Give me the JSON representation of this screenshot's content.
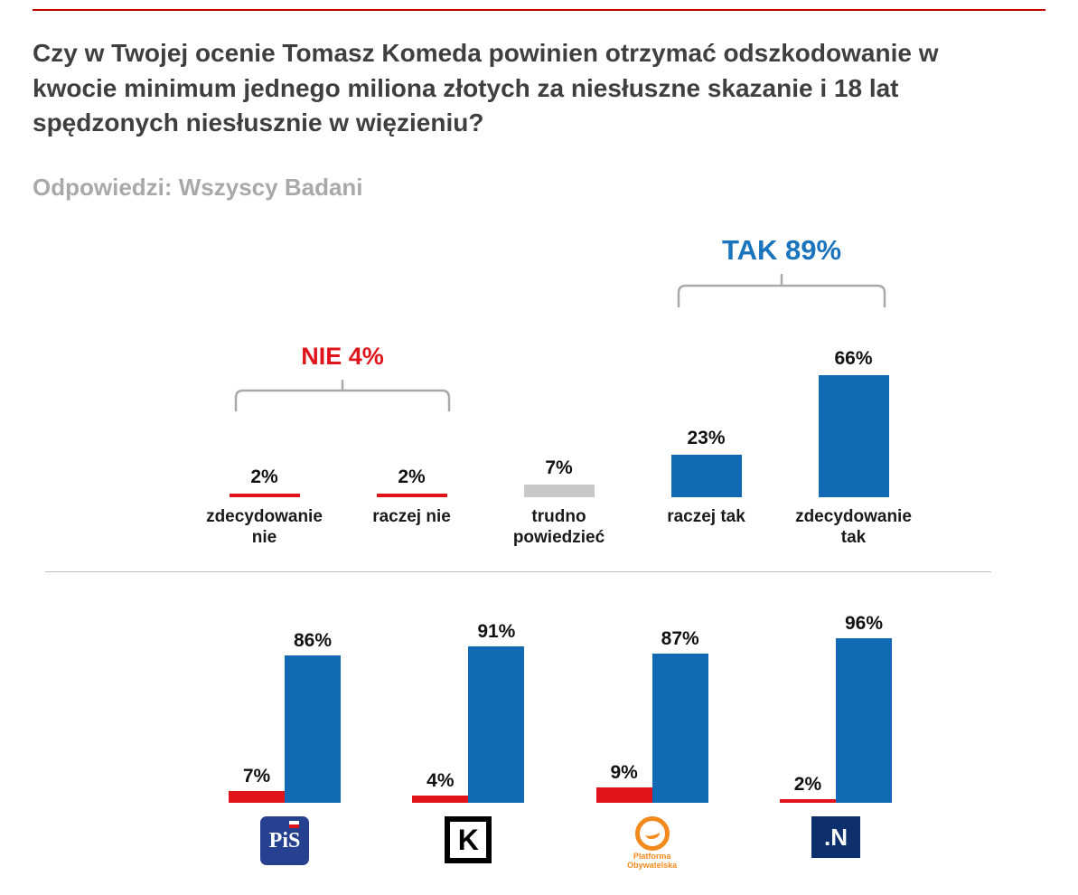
{
  "header": {
    "title": "Czy w Twojej ocenie Tomasz Komeda powinien otrzymać odszkodowanie w kwocie minimum jednego miliona złotych za niesłuszne skazanie i 18 lat spędzonych niesłusznie w więzieniu?",
    "subtitle": "Odpowiedzi: Wszyscy Badani"
  },
  "colors": {
    "accent_red": "#e0151b",
    "accent_blue": "#1269b4",
    "annotation_blue": "#1b75bc",
    "neutral_gray": "#c8c8c8",
    "top_rule_red": "#c00000"
  },
  "chart_data": [
    {
      "type": "bar",
      "title": "Odpowiedzi: Wszyscy Badani",
      "categories": [
        "zdecydowanie nie",
        "raczej nie",
        "trudno powiedzieć",
        "raczej tak",
        "zdecydowanie tak"
      ],
      "values": [
        2,
        2,
        7,
        23,
        66
      ],
      "value_labels": [
        "2%",
        "2%",
        "7%",
        "23%",
        "66%"
      ],
      "colors": [
        "#e0151b",
        "#e0151b",
        "#c8c8c8",
        "#1269b4",
        "#1269b4"
      ],
      "ylim": [
        0,
        100
      ],
      "grid": false,
      "annotations": [
        {
          "label": "NIE 4%",
          "value": 4,
          "color": "#e0151b",
          "spans": [
            "zdecydowanie nie",
            "raczej nie"
          ]
        },
        {
          "label": "TAK 89%",
          "value": 89,
          "color": "#1b75bc",
          "spans": [
            "raczej tak",
            "zdecydowanie tak"
          ]
        }
      ]
    },
    {
      "type": "bar",
      "categories": [
        "PiS",
        "Kukiz'15",
        "Platforma Obywatelska",
        "Nowoczesna"
      ],
      "series": [
        {
          "name": "NIE",
          "color": "#e0151b",
          "values": [
            7,
            4,
            9,
            2
          ],
          "value_labels": [
            "7%",
            "4%",
            "9%",
            "2%"
          ]
        },
        {
          "name": "TAK",
          "color": "#1269b4",
          "values": [
            86,
            91,
            87,
            96
          ],
          "value_labels": [
            "86%",
            "91%",
            "87%",
            "96%"
          ]
        }
      ],
      "ylim": [
        0,
        100
      ],
      "grid": false
    }
  ],
  "parties": [
    {
      "name": "PiS",
      "logo_text": "PiS"
    },
    {
      "name": "Kukiz'15",
      "logo_text": "K"
    },
    {
      "name": "Platforma Obywatelska",
      "logo_text": "Platforma Obywatelska"
    },
    {
      "name": "Nowoczesna",
      "logo_text": ".N"
    }
  ]
}
